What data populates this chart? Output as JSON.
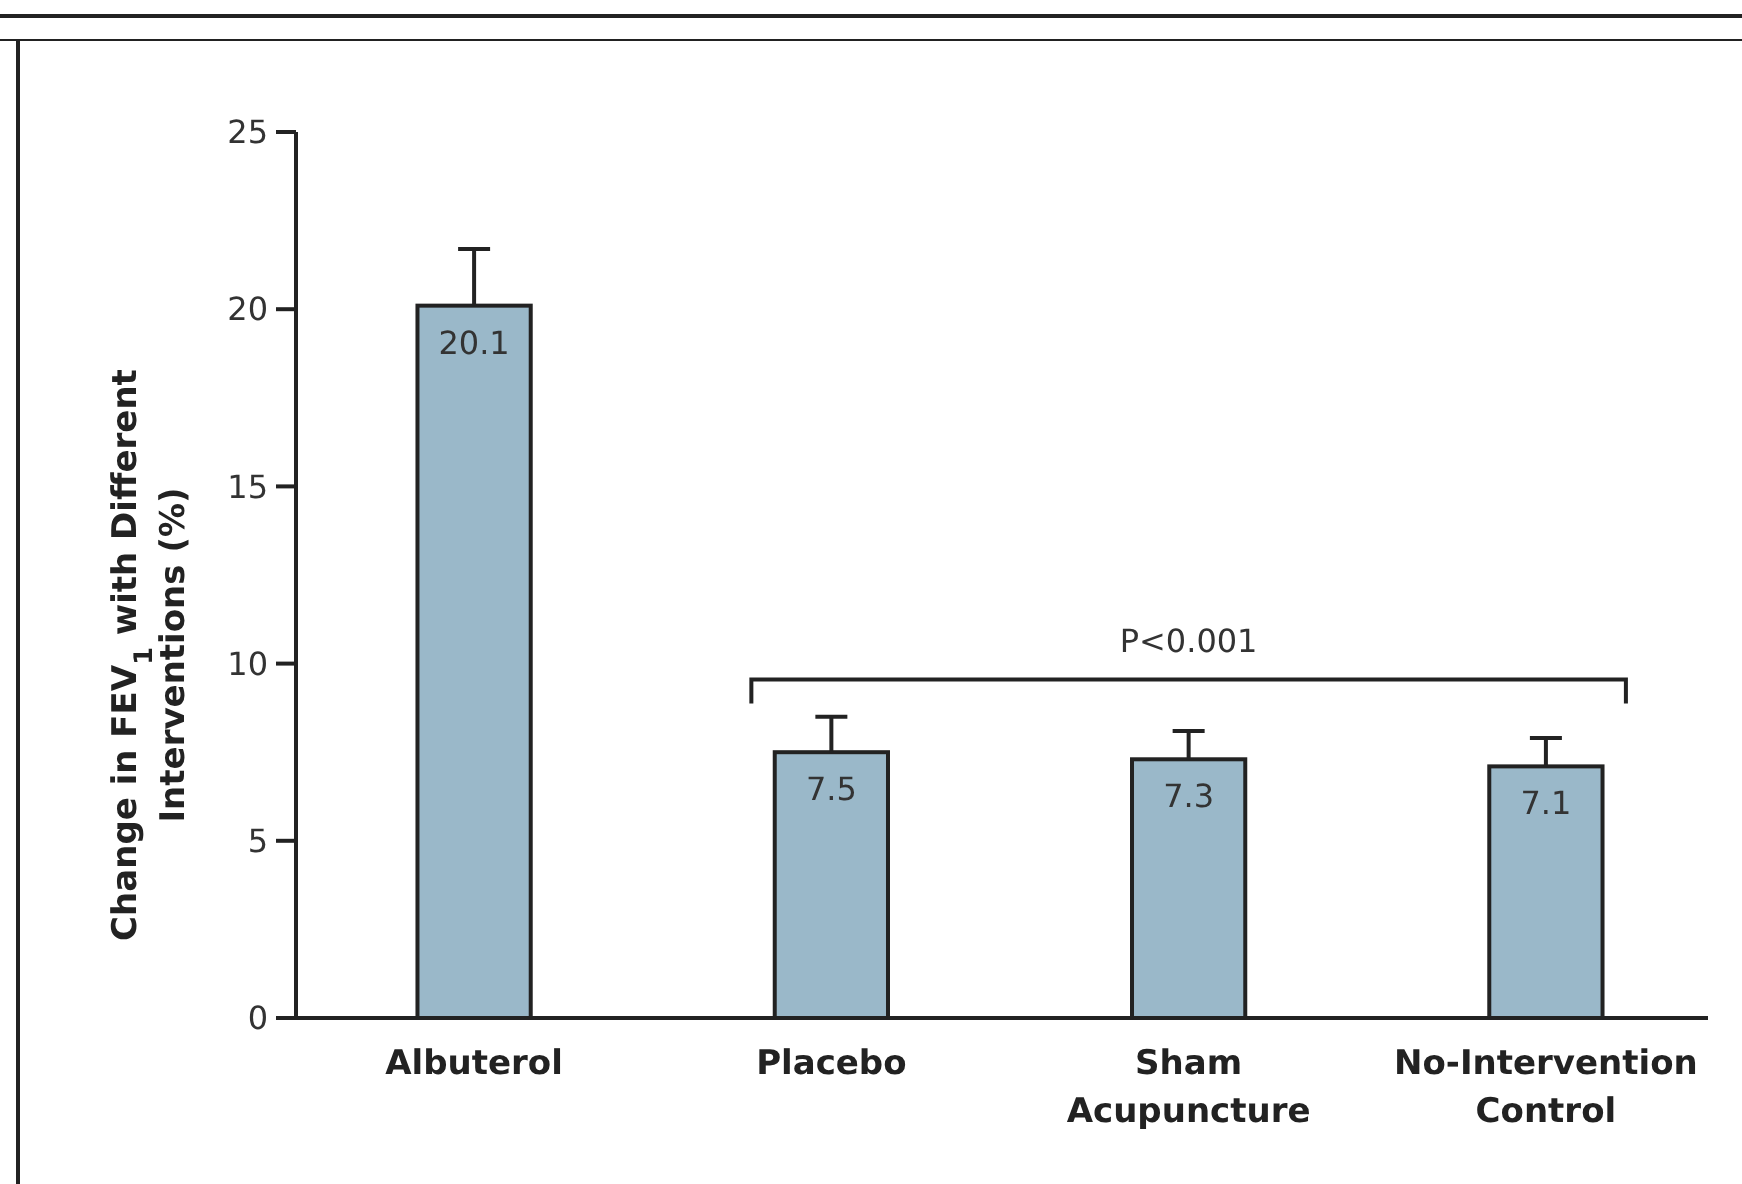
{
  "chart_data": {
    "type": "bar",
    "ylabel": "Change in FEV$_{1}$ with Different Interventions (%)",
    "categories": [
      "Albuterol",
      "Placebo",
      "Sham Acupuncture",
      "No-Intervention Control"
    ],
    "values": [
      20.1,
      7.5,
      7.3,
      7.1
    ],
    "errors": [
      [
        20.1,
        21.7
      ],
      [
        7.5,
        8.5
      ],
      [
        7.3,
        8.1
      ],
      [
        7.1,
        7.9
      ]
    ],
    "color": "#9ab8c9",
    "ylim": [
      0,
      25
    ],
    "yticks": [
      0,
      5,
      10,
      15,
      20,
      25
    ],
    "data_labels": true,
    "annotations": [
      "P<0.001"
    ]
  }
}
